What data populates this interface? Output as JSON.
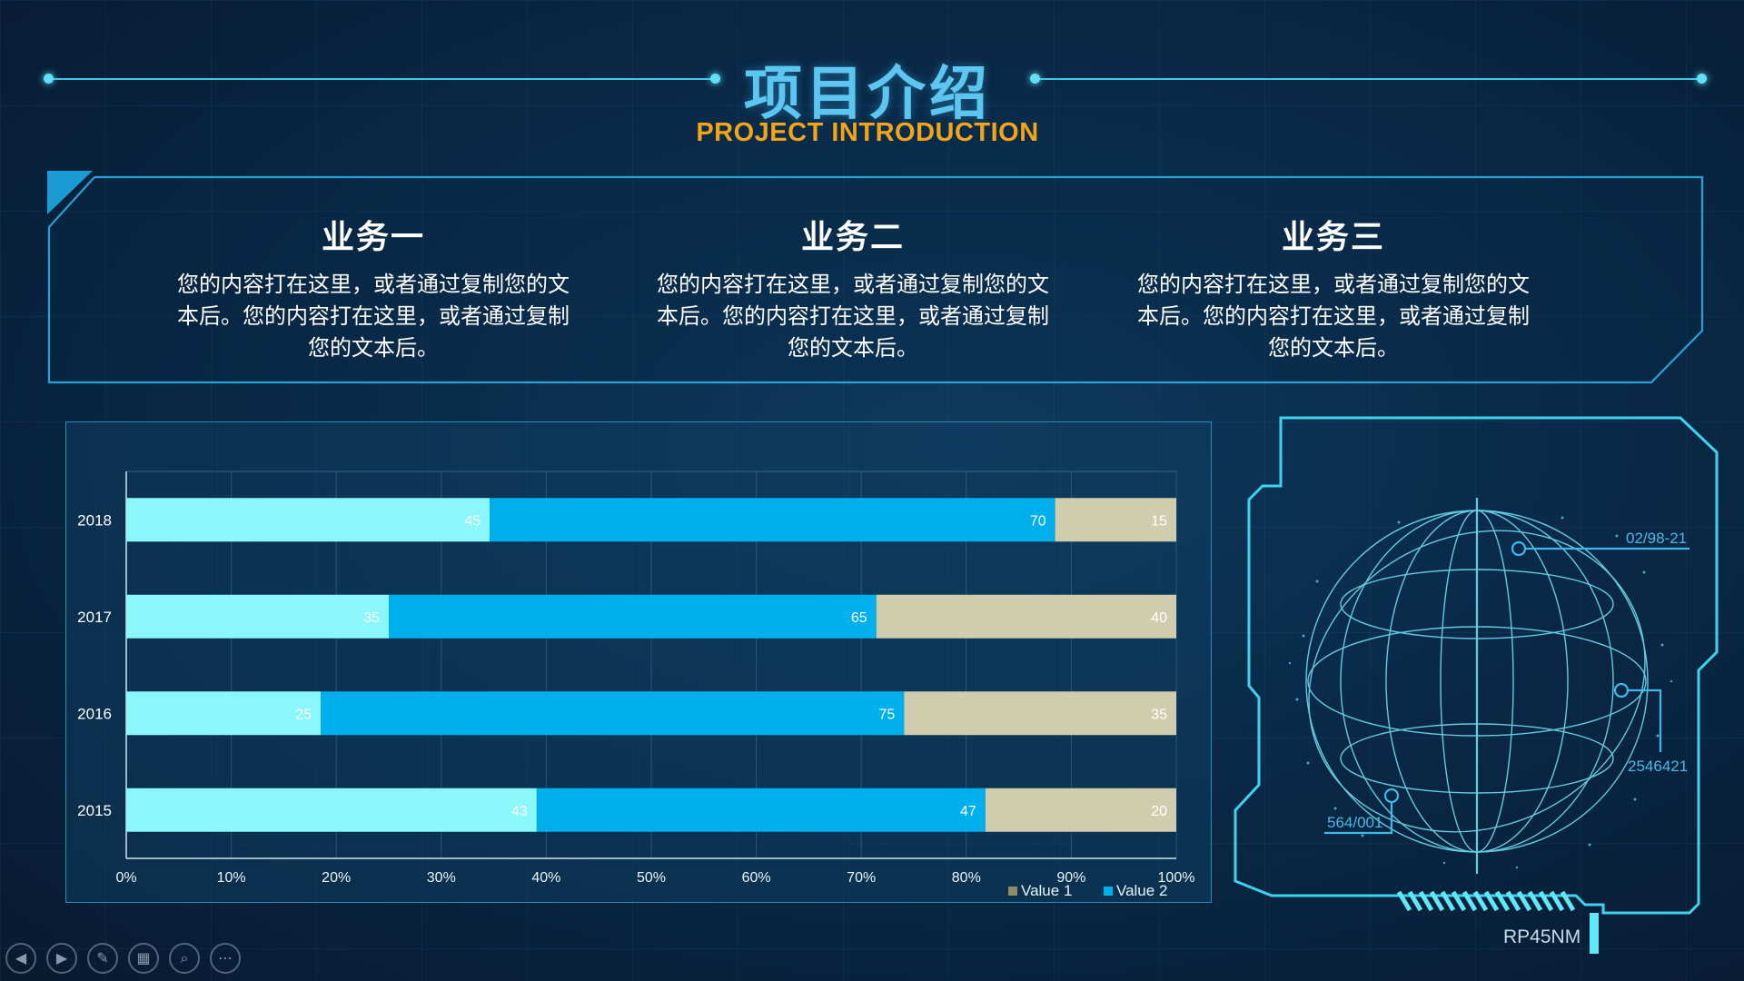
{
  "header": {
    "title": "项目介绍",
    "subtitle": "PROJECT INTRODUCTION"
  },
  "business": [
    {
      "title": "业务一",
      "text": "您的内容打在这里，或者通过复制您的文本后。您的内容打在这里，或者通过复制您的文本后。"
    },
    {
      "title": "业务二",
      "text": "您的内容打在这里，或者通过复制您的文本后。您的内容打在这里，或者通过复制您的文本后。"
    },
    {
      "title": "业务三",
      "text": "您的内容打在这里，或者通过复制您的文本后。您的内容打在这里，或者通过复制您的文本后。"
    }
  ],
  "chart_data": {
    "type": "bar",
    "orientation": "horizontal",
    "stacking": "percent",
    "categories": [
      "2018",
      "2017",
      "2016",
      "2015"
    ],
    "series": [
      {
        "name": "",
        "values": [
          45,
          35,
          25,
          43
        ],
        "color": "#8af7fb"
      },
      {
        "name": "Value  2",
        "values": [
          70,
          65,
          75,
          47
        ],
        "color": "#00b0ec"
      },
      {
        "name": "Value  1",
        "values": [
          15,
          40,
          35,
          20
        ],
        "color": "#d0ccae"
      }
    ],
    "xticks": [
      "0%",
      "10%",
      "20%",
      "30%",
      "40%",
      "50%",
      "60%",
      "70%",
      "80%",
      "90%",
      "100%"
    ],
    "xlim": [
      0,
      100
    ],
    "grid": true,
    "legend": [
      {
        "label": "Value  1",
        "color": "#8f8c6a"
      },
      {
        "label": "Value  2",
        "color": "#00b0ec"
      }
    ],
    "legend_position": "bottom-right"
  },
  "globe": {
    "labels": [
      "02/98-21",
      "2546421",
      "564/001"
    ],
    "code": "RP45NM"
  },
  "toolbar": [
    {
      "name": "previous-slide-button",
      "icon": "chevron-left-icon",
      "glyph": "◀"
    },
    {
      "name": "next-slide-button",
      "icon": "chevron-right-icon",
      "glyph": "▶"
    },
    {
      "name": "pen-button",
      "icon": "pen-icon",
      "glyph": "✎"
    },
    {
      "name": "slides-overview-button",
      "icon": "grid-icon",
      "glyph": "▦"
    },
    {
      "name": "zoom-button",
      "icon": "magnifier-icon",
      "glyph": "⌕"
    },
    {
      "name": "more-options-button",
      "icon": "ellipsis-icon",
      "glyph": "⋯"
    }
  ]
}
